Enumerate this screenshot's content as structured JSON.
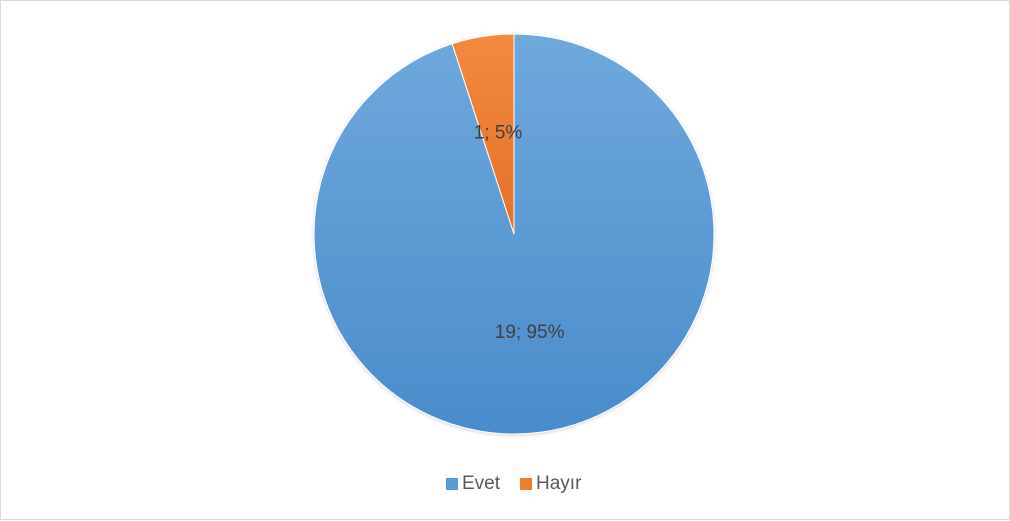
{
  "chart_data": {
    "type": "pie",
    "categories": [
      "Evet",
      "Hayır"
    ],
    "values": [
      19,
      1
    ],
    "percentages": [
      95,
      5
    ],
    "data_labels": [
      "19; 95%",
      "1; 5%"
    ],
    "colors": [
      "#5B9BD5",
      "#ED7D31"
    ],
    "title": "",
    "legend": {
      "position": "bottom",
      "entries": [
        "Evet",
        "Hayır"
      ]
    }
  }
}
